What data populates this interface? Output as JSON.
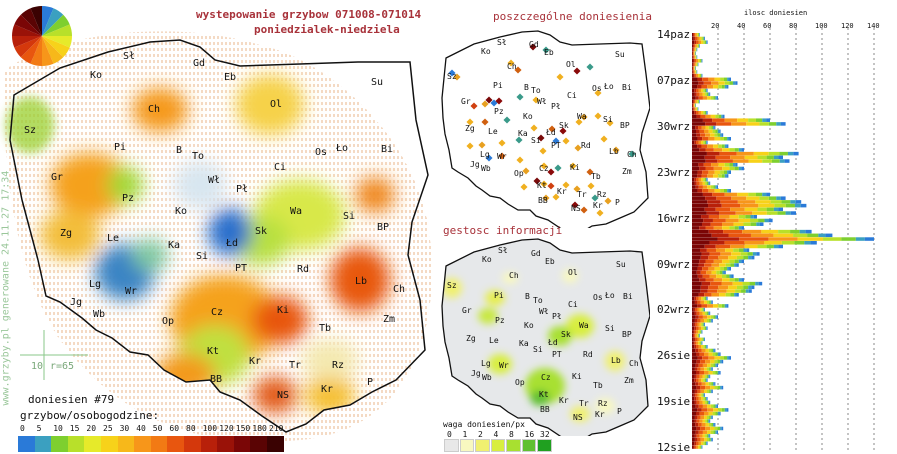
{
  "header": {
    "title": "wystepowanie grzybow 071008-071014",
    "subtitle": "poniedzialek-niedziela"
  },
  "side_text": "www.grzyby.pl generowane 24.11.27 17:34",
  "scale": {
    "label": "10",
    "r_label": "r=65"
  },
  "stats": {
    "count_label": "doniesien #79",
    "unit_label": "grzybow/osobogodzine:"
  },
  "legend": {
    "values": [
      "0",
      "5",
      "10",
      "15",
      "20",
      "25",
      "30",
      "40",
      "50",
      "60",
      "80",
      "100",
      "120",
      "150",
      "180",
      "210"
    ],
    "colors": [
      "#2a7ad8",
      "#3ba0c0",
      "#7ecf2f",
      "#b8e02a",
      "#e6ea2a",
      "#f7d21a",
      "#f7b81a",
      "#f7961a",
      "#f27a14",
      "#e8560f",
      "#d4380c",
      "#b8200a",
      "#9a1208",
      "#7a0606",
      "#5a0404",
      "#3a0202"
    ]
  },
  "main_map": {
    "cities": [
      {
        "id": "Sl",
        "label": "Sł",
        "x": 123,
        "y": 57
      },
      {
        "id": "Gd",
        "label": "Gd",
        "x": 193,
        "y": 64
      },
      {
        "id": "Ko_n",
        "label": "Ko",
        "x": 90,
        "y": 76
      },
      {
        "id": "Eb",
        "label": "Eb",
        "x": 224,
        "y": 78
      },
      {
        "id": "Su",
        "label": "Su",
        "x": 371,
        "y": 83
      },
      {
        "id": "Sz",
        "label": "Sz",
        "x": 24,
        "y": 131
      },
      {
        "id": "Ch",
        "label": "Ch",
        "x": 148,
        "y": 110
      },
      {
        "id": "Ol",
        "label": "Ol",
        "x": 270,
        "y": 105
      },
      {
        "id": "Pi",
        "label": "Pi",
        "x": 114,
        "y": 148
      },
      {
        "id": "B",
        "label": "B",
        "x": 176,
        "y": 151
      },
      {
        "id": "To",
        "label": "To",
        "x": 192,
        "y": 157
      },
      {
        "id": "Os",
        "label": "Os",
        "x": 315,
        "y": 153
      },
      {
        "id": "Lo",
        "label": "Ło",
        "x": 336,
        "y": 149
      },
      {
        "id": "Bi",
        "label": "Bi",
        "x": 381,
        "y": 150
      },
      {
        "id": "Gr",
        "label": "Gr",
        "x": 51,
        "y": 178
      },
      {
        "id": "Ci",
        "label": "Ci",
        "x": 274,
        "y": 168
      },
      {
        "id": "Wl",
        "label": "Wł",
        "x": 208,
        "y": 181
      },
      {
        "id": "Pl",
        "label": "Pł",
        "x": 236,
        "y": 190
      },
      {
        "id": "Pz",
        "label": "Pz",
        "x": 122,
        "y": 199
      },
      {
        "id": "Ko",
        "label": "Ko",
        "x": 175,
        "y": 212
      },
      {
        "id": "Wa",
        "label": "Wa",
        "x": 290,
        "y": 212
      },
      {
        "id": "Si",
        "label": "Si",
        "x": 343,
        "y": 217
      },
      {
        "id": "Zg",
        "label": "Zg",
        "x": 60,
        "y": 234
      },
      {
        "id": "Le",
        "label": "Le",
        "x": 107,
        "y": 239
      },
      {
        "id": "Sk",
        "label": "Sk",
        "x": 255,
        "y": 232
      },
      {
        "id": "BP",
        "label": "BP",
        "x": 377,
        "y": 228
      },
      {
        "id": "Ka",
        "label": "Ka",
        "x": 168,
        "y": 246
      },
      {
        "id": "Ld",
        "label": "Łd",
        "x": 226,
        "y": 244
      },
      {
        "id": "Si2",
        "label": "Si",
        "x": 196,
        "y": 257
      },
      {
        "id": "PT",
        "label": "PT",
        "x": 235,
        "y": 269
      },
      {
        "id": "Rd",
        "label": "Rd",
        "x": 297,
        "y": 270
      },
      {
        "id": "Lb",
        "label": "Lb",
        "x": 355,
        "y": 282
      },
      {
        "id": "Lg",
        "label": "Lg",
        "x": 89,
        "y": 285
      },
      {
        "id": "Wr",
        "label": "Wr",
        "x": 125,
        "y": 292
      },
      {
        "id": "Ch2",
        "label": "Ch",
        "x": 393,
        "y": 290
      },
      {
        "id": "Jg",
        "label": "Jg",
        "x": 70,
        "y": 303
      },
      {
        "id": "Wb",
        "label": "Wb",
        "x": 93,
        "y": 315
      },
      {
        "id": "Cz",
        "label": "Cz",
        "x": 211,
        "y": 313
      },
      {
        "id": "Ki",
        "label": "Ki",
        "x": 277,
        "y": 311
      },
      {
        "id": "Op",
        "label": "Op",
        "x": 162,
        "y": 322
      },
      {
        "id": "Zm",
        "label": "Zm",
        "x": 383,
        "y": 320
      },
      {
        "id": "Tb",
        "label": "Tb",
        "x": 319,
        "y": 329
      },
      {
        "id": "Kt",
        "label": "Kt",
        "x": 207,
        "y": 352
      },
      {
        "id": "Kr",
        "label": "Kr",
        "x": 249,
        "y": 362
      },
      {
        "id": "Tr",
        "label": "Tr",
        "x": 289,
        "y": 366
      },
      {
        "id": "Rz",
        "label": "Rz",
        "x": 332,
        "y": 366
      },
      {
        "id": "BB",
        "label": "BB",
        "x": 210,
        "y": 380
      },
      {
        "id": "P",
        "label": "P",
        "x": 367,
        "y": 383
      },
      {
        "id": "Kr2",
        "label": "Kr",
        "x": 321,
        "y": 390
      },
      {
        "id": "NS",
        "label": "NS",
        "x": 277,
        "y": 396
      }
    ]
  },
  "reports_map": {
    "title": "poszczególne doniesienia",
    "cities": [
      {
        "label": "Sł",
        "x": 497,
        "y": 44
      },
      {
        "label": "Gd",
        "x": 529,
        "y": 46
      },
      {
        "label": "Ko",
        "x": 481,
        "y": 53
      },
      {
        "label": "Eb",
        "x": 544,
        "y": 54
      },
      {
        "label": "Su",
        "x": 615,
        "y": 56
      },
      {
        "label": "Sz",
        "x": 447,
        "y": 78
      },
      {
        "label": "Ch",
        "x": 507,
        "y": 68
      },
      {
        "label": "Ol",
        "x": 566,
        "y": 66
      },
      {
        "label": "Pi",
        "x": 493,
        "y": 87
      },
      {
        "label": "B",
        "x": 524,
        "y": 89
      },
      {
        "label": "To",
        "x": 531,
        "y": 92
      },
      {
        "label": "Os",
        "x": 592,
        "y": 90
      },
      {
        "label": "Ło",
        "x": 604,
        "y": 88
      },
      {
        "label": "Bi",
        "x": 622,
        "y": 89
      },
      {
        "label": "Ci",
        "x": 567,
        "y": 97
      },
      {
        "label": "Gr",
        "x": 461,
        "y": 103
      },
      {
        "label": "Wł",
        "x": 537,
        "y": 103
      },
      {
        "label": "Pł",
        "x": 551,
        "y": 108
      },
      {
        "label": "Pz",
        "x": 494,
        "y": 113
      },
      {
        "label": "Ko",
        "x": 523,
        "y": 118
      },
      {
        "label": "Wa",
        "x": 577,
        "y": 118
      },
      {
        "label": "Si",
        "x": 603,
        "y": 121
      },
      {
        "label": "Zg",
        "x": 465,
        "y": 130
      },
      {
        "label": "Le",
        "x": 488,
        "y": 133
      },
      {
        "label": "BP",
        "x": 620,
        "y": 127
      },
      {
        "label": "Sk",
        "x": 559,
        "y": 127
      },
      {
        "label": "Ka",
        "x": 518,
        "y": 135
      },
      {
        "label": "Łd",
        "x": 546,
        "y": 134
      },
      {
        "label": "Si",
        "x": 531,
        "y": 142
      },
      {
        "label": "PT",
        "x": 551,
        "y": 147
      },
      {
        "label": "Rd",
        "x": 581,
        "y": 147
      },
      {
        "label": "Lb",
        "x": 609,
        "y": 153
      },
      {
        "label": "Lg",
        "x": 480,
        "y": 156
      },
      {
        "label": "Wr",
        "x": 497,
        "y": 158
      },
      {
        "label": "Ch",
        "x": 627,
        "y": 156
      },
      {
        "label": "Jg",
        "x": 470,
        "y": 166
      },
      {
        "label": "Wb",
        "x": 481,
        "y": 170
      },
      {
        "label": "Cz",
        "x": 539,
        "y": 170
      },
      {
        "label": "Ki",
        "x": 570,
        "y": 169
      },
      {
        "label": "Op",
        "x": 514,
        "y": 175
      },
      {
        "label": "Zm",
        "x": 622,
        "y": 173
      },
      {
        "label": "Tb",
        "x": 591,
        "y": 178
      },
      {
        "label": "Kt",
        "x": 537,
        "y": 187
      },
      {
        "label": "Kr",
        "x": 557,
        "y": 193
      },
      {
        "label": "Tr",
        "x": 577,
        "y": 196
      },
      {
        "label": "Rz",
        "x": 597,
        "y": 196
      },
      {
        "label": "BB",
        "x": 538,
        "y": 202
      },
      {
        "label": "P",
        "x": 615,
        "y": 204
      },
      {
        "label": "Kr",
        "x": 593,
        "y": 207
      },
      {
        "label": "NS",
        "x": 571,
        "y": 210
      }
    ],
    "points": [
      {
        "x": 457,
        "y": 77,
        "c": "#e8a020"
      },
      {
        "x": 452,
        "y": 73,
        "c": "#2a7ad8"
      },
      {
        "x": 533,
        "y": 47,
        "c": "#7a0a0a"
      },
      {
        "x": 546,
        "y": 50,
        "c": "#3a9a8a"
      },
      {
        "x": 511,
        "y": 63,
        "c": "#f0b020"
      },
      {
        "x": 518,
        "y": 70,
        "c": "#d06010"
      },
      {
        "x": 577,
        "y": 71,
        "c": "#8a0a0a"
      },
      {
        "x": 590,
        "y": 67,
        "c": "#3a9a8a"
      },
      {
        "x": 560,
        "y": 77,
        "c": "#f0b020"
      },
      {
        "x": 598,
        "y": 93,
        "c": "#f0b020"
      },
      {
        "x": 489,
        "y": 100,
        "c": "#7a0a0a"
      },
      {
        "x": 494,
        "y": 103,
        "c": "#2a7ad8"
      },
      {
        "x": 499,
        "y": 101,
        "c": "#8a0a0a"
      },
      {
        "x": 485,
        "y": 104,
        "c": "#e8a020"
      },
      {
        "x": 474,
        "y": 106,
        "c": "#d04010"
      },
      {
        "x": 520,
        "y": 97,
        "c": "#3a9a8a"
      },
      {
        "x": 536,
        "y": 100,
        "c": "#f0b020"
      },
      {
        "x": 470,
        "y": 122,
        "c": "#f0b020"
      },
      {
        "x": 485,
        "y": 122,
        "c": "#d06010"
      },
      {
        "x": 507,
        "y": 120,
        "c": "#3a9a8a"
      },
      {
        "x": 534,
        "y": 128,
        "c": "#f0b020"
      },
      {
        "x": 552,
        "y": 129,
        "c": "#d06010"
      },
      {
        "x": 563,
        "y": 131,
        "c": "#8a0a0a"
      },
      {
        "x": 579,
        "y": 122,
        "c": "#f0b020"
      },
      {
        "x": 584,
        "y": 117,
        "c": "#e8a020"
      },
      {
        "x": 598,
        "y": 116,
        "c": "#f0b020"
      },
      {
        "x": 610,
        "y": 123,
        "c": "#f0b020"
      },
      {
        "x": 470,
        "y": 146,
        "c": "#f0b020"
      },
      {
        "x": 482,
        "y": 145,
        "c": "#e8a020"
      },
      {
        "x": 502,
        "y": 143,
        "c": "#f0b020"
      },
      {
        "x": 519,
        "y": 140,
        "c": "#3a9a8a"
      },
      {
        "x": 541,
        "y": 138,
        "c": "#7a0a0a"
      },
      {
        "x": 556,
        "y": 141,
        "c": "#2a7ad8"
      },
      {
        "x": 566,
        "y": 141,
        "c": "#f0b020"
      },
      {
        "x": 604,
        "y": 139,
        "c": "#f0b020"
      },
      {
        "x": 616,
        "y": 150,
        "c": "#e8a020"
      },
      {
        "x": 632,
        "y": 154,
        "c": "#3a9a8a"
      },
      {
        "x": 543,
        "y": 151,
        "c": "#f0b020"
      },
      {
        "x": 578,
        "y": 148,
        "c": "#e8a020"
      },
      {
        "x": 489,
        "y": 158,
        "c": "#2a7ad8"
      },
      {
        "x": 502,
        "y": 156,
        "c": "#d06010"
      },
      {
        "x": 520,
        "y": 160,
        "c": "#f0b020"
      },
      {
        "x": 526,
        "y": 171,
        "c": "#e8a020"
      },
      {
        "x": 544,
        "y": 166,
        "c": "#f0b020"
      },
      {
        "x": 551,
        "y": 172,
        "c": "#8a0a0a"
      },
      {
        "x": 558,
        "y": 168,
        "c": "#3a9a8a"
      },
      {
        "x": 573,
        "y": 166,
        "c": "#f0b020"
      },
      {
        "x": 590,
        "y": 172,
        "c": "#d06010"
      },
      {
        "x": 544,
        "y": 184,
        "c": "#f0b020"
      },
      {
        "x": 551,
        "y": 186,
        "c": "#d04010"
      },
      {
        "x": 537,
        "y": 181,
        "c": "#7a0a0a"
      },
      {
        "x": 566,
        "y": 185,
        "c": "#f0b020"
      },
      {
        "x": 577,
        "y": 189,
        "c": "#e8a020"
      },
      {
        "x": 591,
        "y": 186,
        "c": "#f0b020"
      },
      {
        "x": 546,
        "y": 198,
        "c": "#e8a020"
      },
      {
        "x": 556,
        "y": 197,
        "c": "#f0b020"
      },
      {
        "x": 575,
        "y": 205,
        "c": "#8a0a0a"
      },
      {
        "x": 584,
        "y": 210,
        "c": "#d06010"
      },
      {
        "x": 600,
        "y": 213,
        "c": "#f0b020"
      },
      {
        "x": 608,
        "y": 201,
        "c": "#e8a020"
      },
      {
        "x": 524,
        "y": 187,
        "c": "#f0b020"
      },
      {
        "x": 595,
        "y": 198,
        "c": "#3a9a8a"
      }
    ]
  },
  "density_map": {
    "title": "gestosc informacji",
    "legend_title": "waga doniesien/px",
    "legend_values": [
      "0",
      "1",
      "2",
      "4",
      "8",
      "16",
      "32"
    ],
    "legend_colors": [
      "#e8e8e8",
      "#f8f8c0",
      "#f0f070",
      "#d8ee40",
      "#a8e030",
      "#60c030",
      "#20a020"
    ],
    "cities": [
      {
        "label": "Sł",
        "x": 498,
        "y": 252
      },
      {
        "label": "Gd",
        "x": 531,
        "y": 255
      },
      {
        "label": "Ko",
        "x": 482,
        "y": 261
      },
      {
        "label": "Eb",
        "x": 545,
        "y": 263
      },
      {
        "label": "Su",
        "x": 616,
        "y": 266
      },
      {
        "label": "Sz",
        "x": 447,
        "y": 287
      },
      {
        "label": "Ch",
        "x": 509,
        "y": 277
      },
      {
        "label": "Ol",
        "x": 568,
        "y": 274
      },
      {
        "label": "Pi",
        "x": 494,
        "y": 297
      },
      {
        "label": "B",
        "x": 525,
        "y": 298
      },
      {
        "label": "To",
        "x": 533,
        "y": 302
      },
      {
        "label": "Os",
        "x": 593,
        "y": 299
      },
      {
        "label": "Ło",
        "x": 605,
        "y": 297
      },
      {
        "label": "Bi",
        "x": 623,
        "y": 298
      },
      {
        "label": "Ci",
        "x": 568,
        "y": 306
      },
      {
        "label": "Gr",
        "x": 462,
        "y": 312
      },
      {
        "label": "Wł",
        "x": 539,
        "y": 313
      },
      {
        "label": "Pł",
        "x": 552,
        "y": 318
      },
      {
        "label": "Pz",
        "x": 495,
        "y": 322
      },
      {
        "label": "Ko",
        "x": 524,
        "y": 327
      },
      {
        "label": "Wa",
        "x": 579,
        "y": 327
      },
      {
        "label": "Si",
        "x": 605,
        "y": 330
      },
      {
        "label": "Zg",
        "x": 466,
        "y": 340
      },
      {
        "label": "Le",
        "x": 489,
        "y": 342
      },
      {
        "label": "BP",
        "x": 622,
        "y": 336
      },
      {
        "label": "Sk",
        "x": 561,
        "y": 336
      },
      {
        "label": "Ka",
        "x": 519,
        "y": 345
      },
      {
        "label": "Łd",
        "x": 548,
        "y": 344
      },
      {
        "label": "Si",
        "x": 533,
        "y": 351
      },
      {
        "label": "PT",
        "x": 552,
        "y": 356
      },
      {
        "label": "Rd",
        "x": 583,
        "y": 356
      },
      {
        "label": "Lb",
        "x": 611,
        "y": 362
      },
      {
        "label": "Lg",
        "x": 481,
        "y": 365
      },
      {
        "label": "Wr",
        "x": 499,
        "y": 367
      },
      {
        "label": "Ch",
        "x": 629,
        "y": 365
      },
      {
        "label": "Jg",
        "x": 471,
        "y": 375
      },
      {
        "label": "Wb",
        "x": 482,
        "y": 379
      },
      {
        "label": "Cz",
        "x": 541,
        "y": 379
      },
      {
        "label": "Ki",
        "x": 572,
        "y": 378
      },
      {
        "label": "Op",
        "x": 515,
        "y": 384
      },
      {
        "label": "Zm",
        "x": 624,
        "y": 382
      },
      {
        "label": "Tb",
        "x": 593,
        "y": 387
      },
      {
        "label": "Kt",
        "x": 539,
        "y": 396
      },
      {
        "label": "Kr",
        "x": 559,
        "y": 402
      },
      {
        "label": "Tr",
        "x": 579,
        "y": 405
      },
      {
        "label": "Rz",
        "x": 598,
        "y": 405
      },
      {
        "label": "BB",
        "x": 540,
        "y": 411
      },
      {
        "label": "P",
        "x": 617,
        "y": 413
      },
      {
        "label": "Kr",
        "x": 595,
        "y": 416
      },
      {
        "label": "NS",
        "x": 573,
        "y": 419
      }
    ]
  },
  "chart_data": {
    "type": "bar",
    "orientation": "horizontal",
    "title": "ilosc doniesien",
    "x_ticks": [
      20,
      40,
      60,
      80,
      100,
      120,
      140
    ],
    "xlim": [
      0,
      150
    ],
    "y_labels": [
      "14paz",
      "07paz",
      "30wrz",
      "23wrz",
      "16wrz",
      "09wrz",
      "02wrz",
      "26sie",
      "19sie",
      "12sie"
    ],
    "values": [
      6,
      10,
      12,
      6,
      4,
      3,
      4,
      8,
      5,
      3,
      4,
      8,
      30,
      35,
      28,
      12,
      14,
      20,
      6,
      3,
      5,
      12,
      25,
      60,
      72,
      18,
      22,
      24,
      30,
      12,
      28,
      40,
      82,
      70,
      75,
      35,
      40,
      30,
      28,
      12,
      14,
      20,
      30,
      60,
      72,
      84,
      88,
      70,
      80,
      50,
      62,
      55,
      40,
      92,
      108,
      140,
      96,
      70,
      44,
      52,
      48,
      40,
      36,
      30,
      26,
      32,
      40,
      54,
      48,
      46,
      36,
      12,
      16,
      28,
      10,
      14,
      20,
      16,
      10,
      12,
      8,
      6,
      10,
      8,
      12,
      18,
      22,
      30,
      24,
      20,
      16,
      22,
      14,
      12,
      18,
      24,
      16,
      10,
      12,
      14,
      20,
      28,
      22,
      16,
      14,
      18,
      24,
      20,
      14,
      16,
      12,
      8
    ]
  }
}
